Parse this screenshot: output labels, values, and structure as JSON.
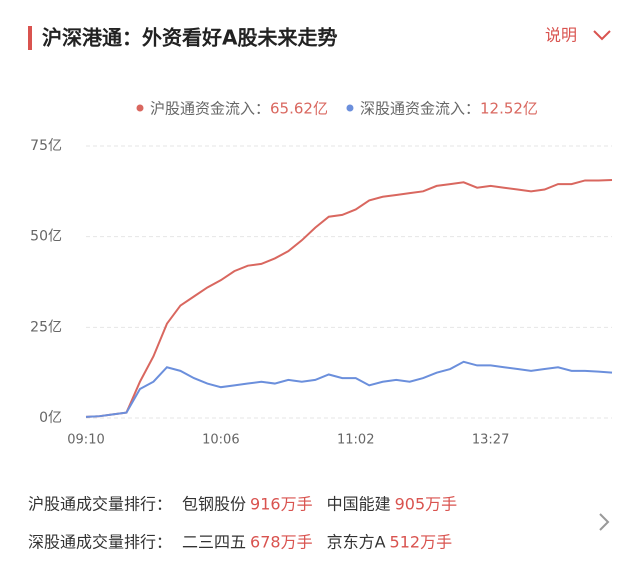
{
  "header": {
    "title": "沪深港通：外资看好A股未来走势",
    "help": "说明"
  },
  "chart_data": {
    "type": "line",
    "categories": [
      "09:10",
      null,
      null,
      null,
      null,
      null,
      null,
      null,
      null,
      null,
      "10:06",
      null,
      null,
      null,
      null,
      null,
      null,
      null,
      null,
      null,
      "11:02",
      null,
      null,
      null,
      null,
      null,
      null,
      null,
      null,
      null,
      "13:27",
      null,
      null,
      null,
      null,
      null,
      null,
      null,
      null,
      null
    ],
    "series": [
      {
        "name": "沪股通资金流入：",
        "latest": "65.62亿",
        "color": "#d9675f",
        "values": [
          0.3,
          0.5,
          1,
          1.5,
          10,
          17,
          26,
          31,
          33.5,
          36,
          38,
          40.5,
          42,
          42.5,
          44,
          46,
          49,
          52.5,
          55.5,
          56,
          57.5,
          60,
          61,
          61.5,
          62,
          62.5,
          64,
          64.5,
          65,
          63.5,
          64,
          63.5,
          63,
          62.5,
          63,
          64.5,
          64.5,
          65.5,
          65.5,
          65.62
        ]
      },
      {
        "name": "深股通资金流入：",
        "latest": "12.52亿",
        "color": "#6b8fdc",
        "values": [
          0.3,
          0.5,
          1,
          1.5,
          8,
          10,
          14,
          13,
          11,
          9.5,
          8.5,
          9,
          9.5,
          10,
          9.5,
          10.5,
          10,
          10.5,
          12,
          11,
          11,
          9,
          10,
          10.5,
          10,
          11,
          12.5,
          13.5,
          15.5,
          14.5,
          14.5,
          14,
          13.5,
          13,
          13.5,
          14,
          13,
          13,
          12.8,
          12.52
        ]
      }
    ],
    "ylim": [
      0,
      75
    ],
    "yticks": [
      {
        "value": 0,
        "label": "0亿"
      },
      {
        "value": 25,
        "label": "25亿"
      },
      {
        "value": 50,
        "label": "50亿"
      },
      {
        "value": 75,
        "label": "75亿"
      }
    ],
    "grid": true
  },
  "rankings": [
    {
      "label": "沪股通成交量排行：",
      "items": [
        {
          "name": "包钢股份",
          "volume": "916万手"
        },
        {
          "name": "中国能建",
          "volume": "905万手"
        }
      ]
    },
    {
      "label": "深股通成交量排行：",
      "items": [
        {
          "name": "二三四五",
          "volume": "678万手"
        },
        {
          "name": "京东方A",
          "volume": "512万手"
        }
      ]
    }
  ]
}
